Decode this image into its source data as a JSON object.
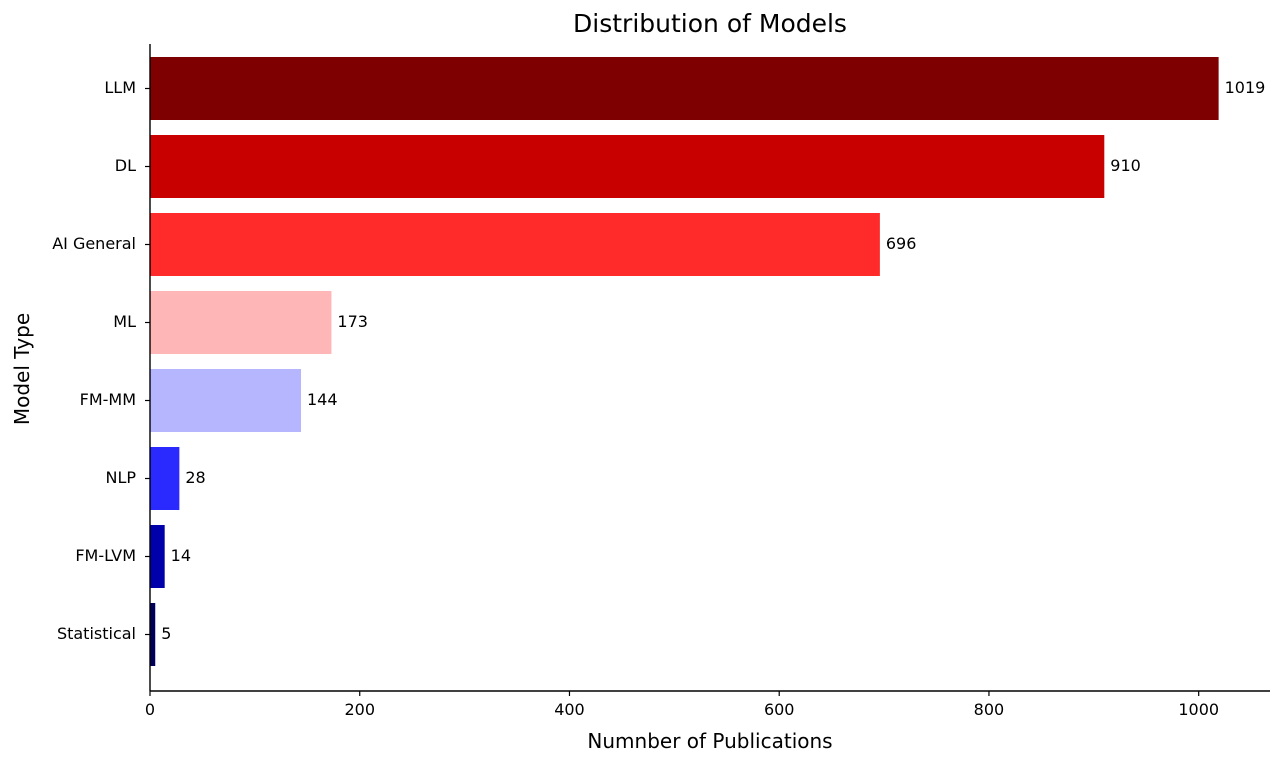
{
  "chart_data": {
    "type": "bar",
    "orientation": "horizontal",
    "title": "Distribution of Models",
    "xlabel": "Numnber of Publications",
    "ylabel": "Model Type",
    "categories": [
      "LLM",
      "DL",
      "AI General",
      "ML",
      "FM-MM",
      "NLP",
      "FM-LVM",
      "Statistical"
    ],
    "values": [
      1019,
      910,
      696,
      173,
      144,
      28,
      14,
      5
    ],
    "bar_colors": [
      "#7f0000",
      "#c80000",
      "#ff2a2a",
      "#ffb6b6",
      "#b6b6ff",
      "#2a2aff",
      "#0000aa",
      "#00005a"
    ],
    "xlim": [
      0,
      1068
    ],
    "xticks": [
      0,
      200,
      400,
      600,
      800,
      1000
    ],
    "grid": false,
    "data_labels": true
  }
}
